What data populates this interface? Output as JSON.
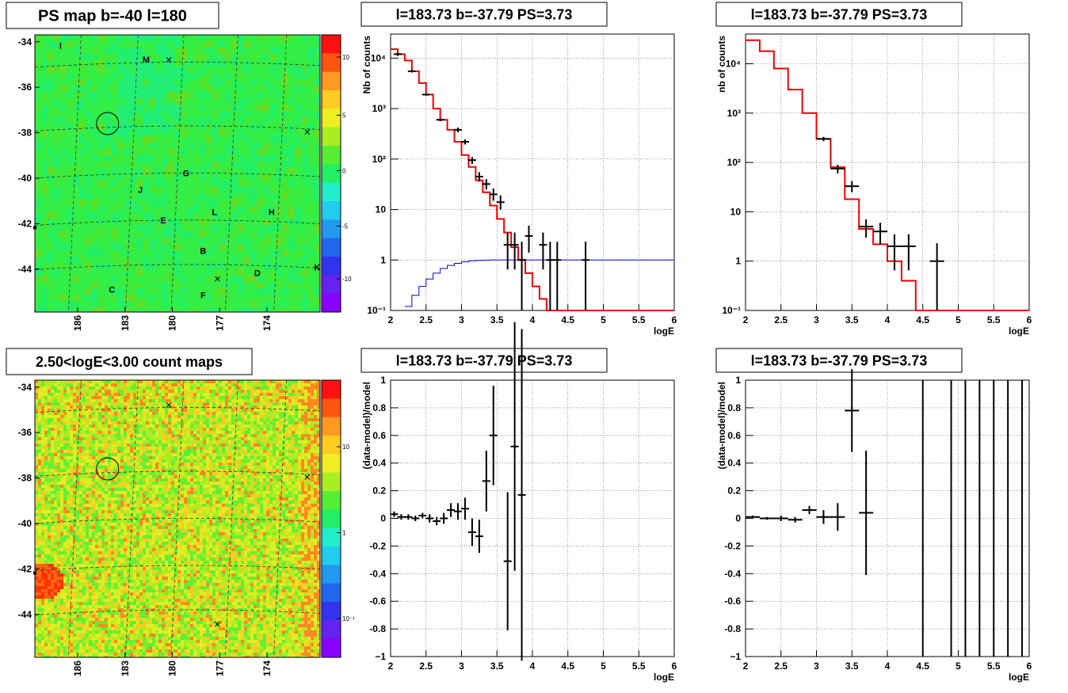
{
  "panels": {
    "map_top": {
      "title": "PS map b=-40 l=180",
      "y_ticks": [
        "-34",
        "-36",
        "-38",
        "-40",
        "-42",
        "-44"
      ],
      "x_ticks": [
        "186",
        "183",
        "180",
        "177",
        "174"
      ],
      "colorbar_ticks": [
        "10",
        "5",
        "0",
        "-5",
        "-10"
      ],
      "sources": [
        {
          "name": "I",
          "x": 0.09,
          "y": 0.05
        },
        {
          "name": "M",
          "x": 0.39,
          "y": 0.1
        },
        {
          "name": "G",
          "x": 0.53,
          "y": 0.51
        },
        {
          "name": "J",
          "x": 0.37,
          "y": 0.57
        },
        {
          "name": "L",
          "x": 0.63,
          "y": 0.65
        },
        {
          "name": "H",
          "x": 0.83,
          "y": 0.65
        },
        {
          "name": "E",
          "x": 0.45,
          "y": 0.68
        },
        {
          "name": "B",
          "x": 0.59,
          "y": 0.79
        },
        {
          "name": "D",
          "x": 0.78,
          "y": 0.87
        },
        {
          "name": "K",
          "x": 0.99,
          "y": 0.85
        },
        {
          "name": "C",
          "x": 0.27,
          "y": 0.93
        },
        {
          "name": "F",
          "x": 0.59,
          "y": 0.95
        }
      ],
      "colors": {
        "base": "#33ee44",
        "light": "#22ee77",
        "dark": "#55dd22"
      }
    },
    "map_bottom": {
      "title": "2.50<logE<3.00 count maps",
      "y_ticks": [
        "-34",
        "-36",
        "-38",
        "-40",
        "-42",
        "-44"
      ],
      "x_ticks": [
        "186",
        "183",
        "180",
        "177",
        "174"
      ],
      "colorbar_ticks": [
        "10",
        "1",
        "10⁻¹"
      ]
    },
    "spec_left": {
      "title": "l=183.73 b=-37.79 PS=3.73",
      "ylabel": "Nb of counts",
      "xlabel": "logE"
    },
    "spec_right": {
      "title": "l=183.73 b=-37.79 PS=3.73",
      "ylabel": "nb of counts",
      "xlabel": "logE"
    },
    "res_left": {
      "title": "l=183.73 b=-37.79 PS=3.73",
      "ylabel": "(data-model)/model",
      "xlabel": "logE"
    },
    "res_right": {
      "title": "l=183.73 b=-37.79 PS=3.73",
      "ylabel": "(data-model)/model",
      "xlabel": "logE"
    }
  },
  "chart_data": [
    {
      "type": "line",
      "name": "spectrum-fine",
      "xlabel": "logE",
      "ylabel": "Nb of counts",
      "xlim": [
        2,
        6
      ],
      "ylim": [
        0.1,
        30000
      ],
      "yscale": "log",
      "grid": true,
      "x_ticks": [
        "2",
        "2.5",
        "3",
        "3.5",
        "4",
        "4.5",
        "5",
        "5.5",
        "6"
      ],
      "y_ticks": [
        {
          "v": 0.1,
          "t": "10⁻¹"
        },
        {
          "v": 1,
          "t": "1"
        },
        {
          "v": 10,
          "t": "10"
        },
        {
          "v": 100,
          "t": "10²"
        },
        {
          "v": 1000,
          "t": "10³"
        },
        {
          "v": 10000,
          "t": "10⁴"
        }
      ],
      "model_red": [
        [
          2.0,
          15000
        ],
        [
          2.1,
          12000
        ],
        [
          2.2,
          9000
        ],
        [
          2.3,
          5500
        ],
        [
          2.4,
          3200
        ],
        [
          2.5,
          1900
        ],
        [
          2.6,
          1000
        ],
        [
          2.7,
          600
        ],
        [
          2.8,
          380
        ],
        [
          2.9,
          220
        ],
        [
          3.0,
          120
        ],
        [
          3.1,
          70
        ],
        [
          3.2,
          38
        ],
        [
          3.3,
          22
        ],
        [
          3.4,
          12
        ],
        [
          3.5,
          6.5
        ],
        [
          3.6,
          3.5
        ],
        [
          3.7,
          1.8
        ],
        [
          3.8,
          1.0
        ],
        [
          3.9,
          0.55
        ],
        [
          4.0,
          0.3
        ],
        [
          4.1,
          0.17
        ],
        [
          4.2,
          0.1
        ],
        [
          6.0,
          0.1
        ]
      ],
      "model_blue": [
        [
          2.2,
          0.12
        ],
        [
          2.3,
          0.2
        ],
        [
          2.4,
          0.3
        ],
        [
          2.5,
          0.42
        ],
        [
          2.6,
          0.55
        ],
        [
          2.7,
          0.68
        ],
        [
          2.8,
          0.78
        ],
        [
          2.9,
          0.86
        ],
        [
          3.0,
          0.92
        ],
        [
          3.1,
          0.96
        ],
        [
          3.2,
          0.98
        ],
        [
          3.3,
          0.99
        ],
        [
          3.4,
          1.0
        ],
        [
          6.0,
          1.0
        ]
      ],
      "points": [
        {
          "x": 2.95,
          "y": 380,
          "lo": 340,
          "hi": 420
        },
        {
          "x": 3.05,
          "y": 220,
          "lo": 195,
          "hi": 245
        },
        {
          "x": 3.15,
          "y": 95,
          "lo": 80,
          "hi": 110
        },
        {
          "x": 3.25,
          "y": 45,
          "lo": 36,
          "hi": 55
        },
        {
          "x": 3.35,
          "y": 32,
          "lo": 25,
          "hi": 40
        },
        {
          "x": 3.45,
          "y": 20,
          "lo": 15,
          "hi": 26
        },
        {
          "x": 3.55,
          "y": 14,
          "lo": 10,
          "hi": 19
        },
        {
          "x": 3.65,
          "y": 2.0,
          "lo": 0.65,
          "hi": 3.5
        },
        {
          "x": 3.75,
          "y": 2.0,
          "lo": 0.65,
          "hi": 3.5
        },
        {
          "x": 3.85,
          "y": 1.0,
          "lo": 0.1,
          "hi": 2.3
        },
        {
          "x": 3.95,
          "y": 3.0,
          "lo": 1.4,
          "hi": 4.8
        },
        {
          "x": 4.15,
          "y": 2.0,
          "lo": 0.65,
          "hi": 3.5
        },
        {
          "x": 4.25,
          "y": 1.0,
          "lo": 0.1,
          "hi": 2.3
        },
        {
          "x": 4.35,
          "y": 1.0,
          "lo": 0.1,
          "hi": 2.3
        },
        {
          "x": 4.75,
          "y": 1.0,
          "lo": 0.1,
          "hi": 2.3
        }
      ]
    },
    {
      "type": "line",
      "name": "spectrum-coarse",
      "xlabel": "logE",
      "ylabel": "nb of counts",
      "xlim": [
        2,
        6
      ],
      "ylim": [
        0.1,
        40000
      ],
      "yscale": "log",
      "grid": true,
      "x_ticks": [
        "2",
        "2.5",
        "3",
        "3.5",
        "4",
        "4.5",
        "5",
        "5.5",
        "6"
      ],
      "y_ticks": [
        {
          "v": 0.1,
          "t": "10⁻¹"
        },
        {
          "v": 1,
          "t": "1"
        },
        {
          "v": 10,
          "t": "10"
        },
        {
          "v": 100,
          "t": "10²"
        },
        {
          "v": 1000,
          "t": "10³"
        },
        {
          "v": 10000,
          "t": "10⁴"
        }
      ],
      "model_red": [
        [
          2.0,
          30000
        ],
        [
          2.2,
          18000
        ],
        [
          2.4,
          8000
        ],
        [
          2.6,
          3000
        ],
        [
          2.8,
          1000
        ],
        [
          3.0,
          300
        ],
        [
          3.2,
          80
        ],
        [
          3.4,
          18
        ],
        [
          3.6,
          4.5
        ],
        [
          3.8,
          2.2
        ],
        [
          4.0,
          1.0
        ],
        [
          4.2,
          0.4
        ],
        [
          4.4,
          0.1
        ],
        [
          6.0,
          0.1
        ]
      ],
      "points": [
        {
          "x": 3.1,
          "y": 300,
          "lo": 270,
          "hi": 330
        },
        {
          "x": 3.3,
          "y": 75,
          "lo": 60,
          "hi": 90
        },
        {
          "x": 3.5,
          "y": 33,
          "lo": 25,
          "hi": 42
        },
        {
          "x": 3.7,
          "y": 5,
          "lo": 3,
          "hi": 7
        },
        {
          "x": 3.9,
          "y": 4,
          "lo": 2.2,
          "hi": 6
        },
        {
          "x": 4.1,
          "y": 2,
          "lo": 0.65,
          "hi": 3.5
        },
        {
          "x": 4.3,
          "y": 2,
          "lo": 0.65,
          "hi": 3.5
        },
        {
          "x": 4.7,
          "y": 1,
          "lo": 0.1,
          "hi": 2.3
        }
      ]
    },
    {
      "type": "scatter",
      "name": "residual-fine",
      "xlabel": "logE",
      "ylabel": "(data-model)/model",
      "xlim": [
        2,
        6
      ],
      "ylim": [
        -1,
        1
      ],
      "grid": true,
      "x_ticks": [
        "2",
        "2.5",
        "3",
        "3.5",
        "4",
        "4.5",
        "5",
        "5.5",
        "6"
      ],
      "y_ticks": [
        "1",
        "0.8",
        "0.6",
        "0.4",
        "0.2",
        "0",
        "-0.2",
        "-0.4",
        "-0.6",
        "-0.8",
        "-1"
      ],
      "points": [
        {
          "x": 2.05,
          "y": 0.03,
          "e": 0.02
        },
        {
          "x": 2.15,
          "y": 0.01,
          "e": 0.02
        },
        {
          "x": 2.25,
          "y": 0.01,
          "e": 0.02
        },
        {
          "x": 2.35,
          "y": 0.0,
          "e": 0.02
        },
        {
          "x": 2.45,
          "y": 0.02,
          "e": 0.02
        },
        {
          "x": 2.55,
          "y": 0.0,
          "e": 0.03
        },
        {
          "x": 2.65,
          "y": -0.02,
          "e": 0.03
        },
        {
          "x": 2.75,
          "y": 0.0,
          "e": 0.04
        },
        {
          "x": 2.85,
          "y": 0.06,
          "e": 0.05
        },
        {
          "x": 2.95,
          "y": 0.05,
          "e": 0.06
        },
        {
          "x": 3.05,
          "y": 0.07,
          "e": 0.08
        },
        {
          "x": 3.15,
          "y": -0.1,
          "e": 0.1
        },
        {
          "x": 3.25,
          "y": -0.13,
          "e": 0.12
        },
        {
          "x": 3.35,
          "y": 0.27,
          "e": 0.22
        },
        {
          "x": 3.45,
          "y": 0.6,
          "e": 0.36
        },
        {
          "x": 3.65,
          "y": -0.31,
          "e": 0.5
        },
        {
          "x": 3.75,
          "y": 0.52,
          "e": 0.9
        },
        {
          "x": 3.85,
          "y": 0.17,
          "e": 1.2
        }
      ]
    },
    {
      "type": "scatter",
      "name": "residual-coarse",
      "xlabel": "logE",
      "ylabel": "(data-model)/model",
      "xlim": [
        2,
        6
      ],
      "ylim": [
        -1,
        1
      ],
      "grid": true,
      "x_ticks": [
        "2",
        "2.5",
        "3",
        "3.5",
        "4",
        "4.5",
        "5",
        "5.5",
        "6"
      ],
      "y_ticks": [
        "1",
        "0.8",
        "0.6",
        "0.4",
        "0.2",
        "0",
        "-0.2",
        "-0.4",
        "-0.6",
        "-0.8",
        "-1"
      ],
      "points": [
        {
          "x": 2.1,
          "y": 0.01,
          "e": 0.01
        },
        {
          "x": 2.3,
          "y": 0.0,
          "e": 0.01
        },
        {
          "x": 2.5,
          "y": 0.0,
          "e": 0.02
        },
        {
          "x": 2.7,
          "y": -0.01,
          "e": 0.02
        },
        {
          "x": 2.9,
          "y": 0.06,
          "e": 0.03
        },
        {
          "x": 3.1,
          "y": 0.01,
          "e": 0.05
        },
        {
          "x": 3.3,
          "y": 0.01,
          "e": 0.1
        },
        {
          "x": 3.5,
          "y": 0.78,
          "e": 0.3
        },
        {
          "x": 3.7,
          "y": 0.04,
          "e": 0.45
        }
      ],
      "vlines": [
        4.5,
        4.9,
        5.1,
        5.3,
        5.5,
        5.7,
        5.9
      ]
    }
  ]
}
